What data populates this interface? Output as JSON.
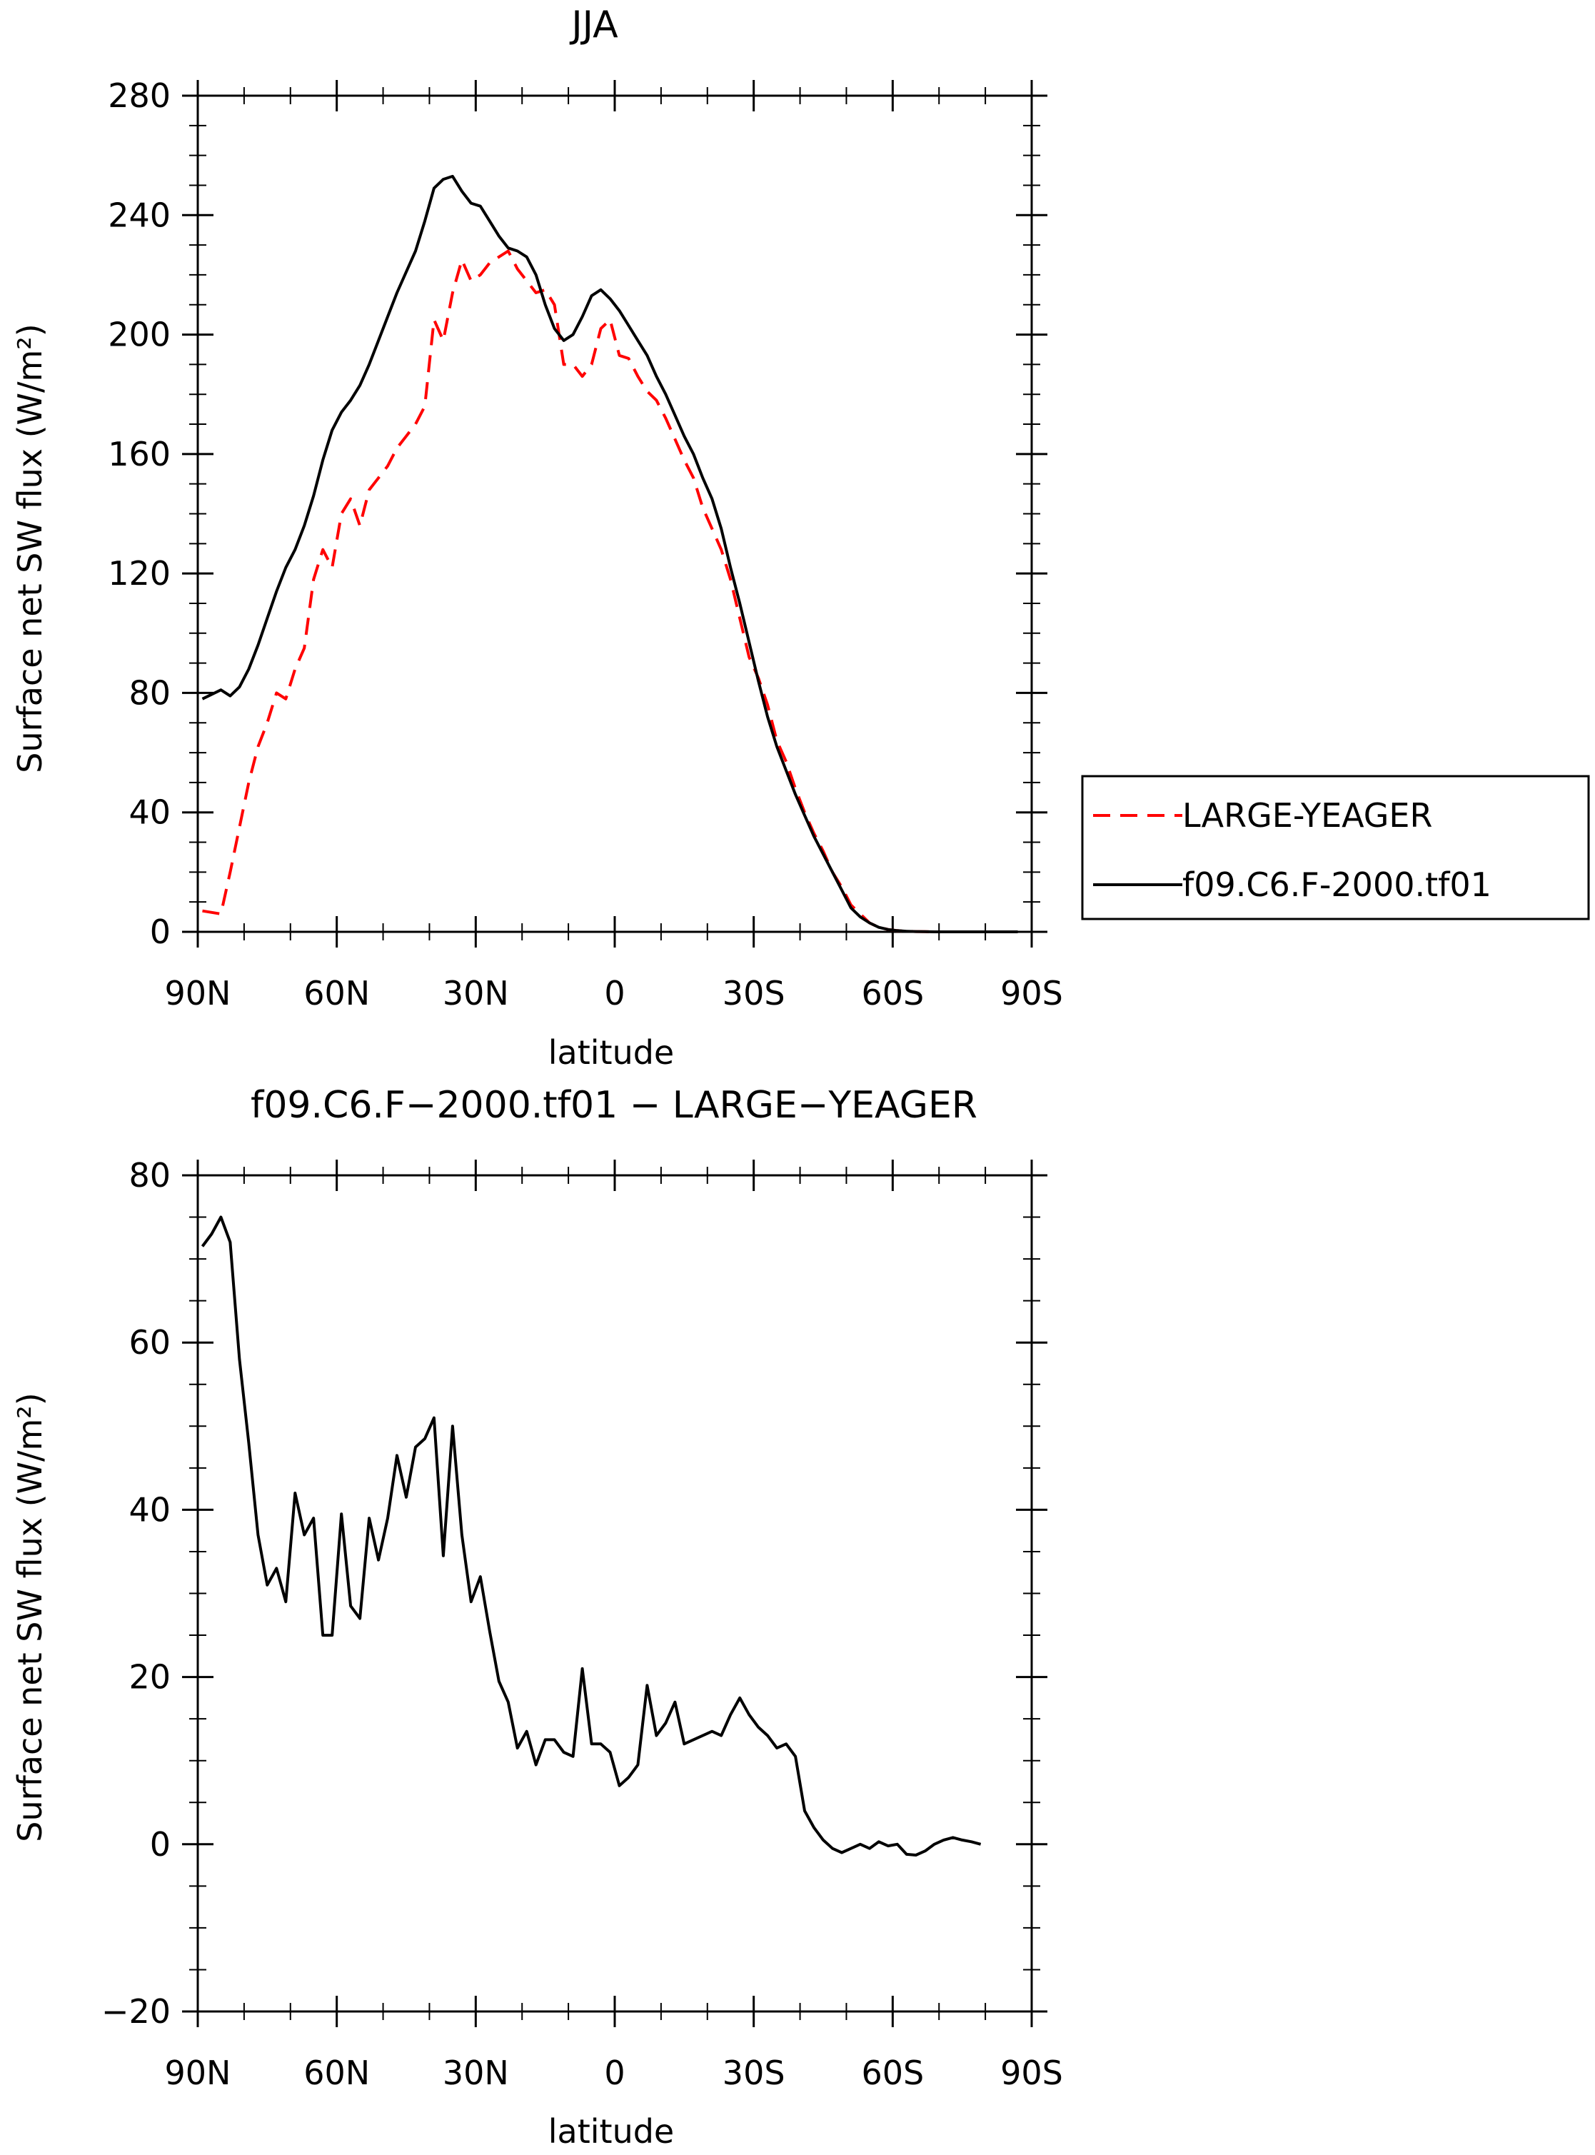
{
  "chart_data": [
    {
      "type": "line",
      "title": "JJA",
      "xlabel": "latitude",
      "ylabel": "Surface net SW flux (W/m²)",
      "ylim": [
        0,
        280
      ],
      "yticks": [
        0,
        40,
        80,
        120,
        160,
        200,
        240,
        280
      ],
      "xlim": [
        90,
        -90
      ],
      "xticks": [
        90,
        60,
        30,
        0,
        -30,
        -60,
        -90
      ],
      "xticklabels": [
        "90N",
        "60N",
        "30N",
        "0",
        "30S",
        "60S",
        "90S"
      ],
      "grid": false,
      "legend_position": "right",
      "series": [
        {
          "name": "LARGE-YEAGER",
          "color": "#ff0000",
          "style": "dashed",
          "x": [
            89,
            85,
            83,
            81,
            79,
            77,
            75,
            73,
            71,
            69,
            67,
            65,
            63,
            61,
            59,
            57,
            55,
            53,
            51,
            49,
            47,
            45,
            43,
            41,
            39,
            37,
            35,
            33,
            31,
            29,
            27,
            25,
            23,
            21,
            19,
            17,
            15,
            13,
            11,
            9,
            7,
            5,
            3,
            1,
            -1,
            -3,
            -5,
            -7,
            -9,
            -11,
            -13,
            -15,
            -17,
            -19,
            -21,
            -23,
            -25,
            -27,
            -29,
            -31,
            -33,
            -35,
            -37,
            -39,
            -41,
            -43,
            -45,
            -47,
            -49,
            -51,
            -53,
            -55,
            -57,
            -59,
            -61,
            -63,
            -65,
            -67,
            -69,
            -71,
            -73,
            -75,
            -77,
            -79,
            -81,
            -83,
            -85,
            -87
          ],
          "values": [
            7,
            6,
            20,
            35,
            50,
            62,
            70,
            80,
            78,
            88,
            95,
            118,
            128,
            122,
            140,
            145,
            136,
            148,
            152,
            156,
            162,
            166,
            170,
            176,
            205,
            198,
            214,
            225,
            218,
            220,
            224,
            226,
            228,
            222,
            218,
            214,
            215,
            210,
            190,
            190,
            186,
            190,
            202,
            205,
            193,
            192,
            186,
            181,
            178,
            172,
            165,
            158,
            152,
            142,
            135,
            128,
            118,
            105,
            92,
            85,
            76,
            64,
            57,
            48,
            40,
            33,
            27,
            20,
            15,
            9,
            6,
            3,
            1.5,
            0.8,
            0.4,
            0.2,
            0.1,
            0.05,
            0,
            0,
            0,
            0,
            0,
            0,
            0,
            0,
            0,
            0
          ]
        },
        {
          "name": "f09.C6.F-2000.tf01",
          "color": "#000000",
          "style": "solid",
          "x": [
            89,
            85,
            83,
            81,
            79,
            77,
            75,
            73,
            71,
            69,
            67,
            65,
            63,
            61,
            59,
            57,
            55,
            53,
            51,
            49,
            47,
            45,
            43,
            41,
            39,
            37,
            35,
            33,
            31,
            29,
            27,
            25,
            23,
            21,
            19,
            17,
            15,
            13,
            11,
            9,
            7,
            5,
            3,
            1,
            -1,
            -3,
            -5,
            -7,
            -9,
            -11,
            -13,
            -15,
            -17,
            -19,
            -21,
            -23,
            -25,
            -27,
            -29,
            -31,
            -33,
            -35,
            -37,
            -39,
            -41,
            -43,
            -45,
            -47,
            -49,
            -51,
            -53,
            -55,
            -57,
            -59,
            -61,
            -63,
            -65,
            -67,
            -69,
            -71,
            -73,
            -75,
            -77,
            -79,
            -81,
            -83,
            -85,
            -87
          ],
          "values": [
            78,
            81,
            79,
            82,
            88,
            96,
            105,
            114,
            122,
            128,
            136,
            146,
            158,
            168,
            174,
            178,
            183,
            190,
            198,
            206,
            214,
            221,
            228,
            238,
            249,
            252,
            253,
            248,
            244,
            243,
            238,
            233,
            229,
            228,
            226,
            220,
            210,
            202,
            198,
            200,
            206,
            213,
            215,
            212,
            208,
            203,
            198,
            193,
            186,
            180,
            173,
            166,
            160,
            152,
            145,
            135,
            122,
            110,
            97,
            84,
            72,
            62,
            54,
            46,
            39,
            32,
            26,
            20,
            14,
            8,
            5,
            3,
            1.5,
            0.8,
            0.4,
            0.2,
            0.1,
            0.05,
            0,
            0,
            0,
            0,
            0,
            0,
            0,
            0,
            0,
            0
          ]
        }
      ]
    },
    {
      "type": "line",
      "title": "f09.C6.F−2000.tf01 − LARGE−YEAGER",
      "xlabel": "latitude",
      "ylabel": "Surface net SW flux (W/m²)",
      "ylim": [
        -20,
        80
      ],
      "yticks": [
        -20,
        0,
        20,
        40,
        60,
        80
      ],
      "yticklabels": [
        "−20",
        "0",
        "20",
        "40",
        "60",
        "80"
      ],
      "xlim": [
        90,
        -90
      ],
      "xticks": [
        90,
        60,
        30,
        0,
        -30,
        -60,
        -90
      ],
      "xticklabels": [
        "90N",
        "60N",
        "30N",
        "0",
        "30S",
        "60S",
        "90S"
      ],
      "grid": false,
      "series": [
        {
          "color": "#000000",
          "style": "solid",
          "x": [
            89,
            87,
            85,
            83,
            81,
            79,
            77,
            75,
            73,
            71,
            69,
            67,
            65,
            63,
            61,
            59,
            57,
            55,
            53,
            51,
            49,
            47,
            45,
            43,
            41,
            39,
            37,
            35,
            33,
            31,
            29,
            27,
            25,
            23,
            21,
            19,
            17,
            15,
            13,
            11,
            9,
            7,
            5,
            3,
            1,
            -1,
            -3,
            -5,
            -7,
            -9,
            -11,
            -13,
            -15,
            -17,
            -19,
            -21,
            -23,
            -25,
            -27,
            -29,
            -31,
            -33,
            -35,
            -37,
            -39,
            -41,
            -43,
            -45,
            -47,
            -49,
            -51,
            -53,
            -55,
            -57,
            -59,
            -61,
            -63,
            -65,
            -67,
            -69,
            -71,
            -73,
            -75,
            -77,
            -79
          ],
          "values": [
            71.5,
            73,
            75,
            72,
            58,
            48,
            37,
            31,
            33,
            29,
            42,
            37,
            39,
            25,
            25,
            39.5,
            28.5,
            27,
            39,
            34,
            39,
            46.5,
            41.5,
            47.5,
            48.5,
            51,
            34.5,
            50,
            37,
            29,
            32,
            25.5,
            19.5,
            17,
            11.5,
            13.5,
            9.5,
            12.5,
            12.5,
            11,
            10.5,
            21,
            12,
            12,
            11,
            7,
            8,
            9.5,
            19,
            13,
            14.5,
            17,
            12,
            12.5,
            13,
            13.5,
            13,
            15.5,
            17.5,
            15.5,
            14,
            13,
            11.5,
            12,
            10.5,
            4,
            2,
            0.5,
            -0.5,
            -1,
            -0.5,
            0,
            -0.5,
            0.3,
            -0.2,
            0,
            -1.2,
            -1.3,
            -0.8,
            0,
            0.5,
            0.8,
            0.5,
            0.3,
            0
          ]
        }
      ]
    }
  ]
}
